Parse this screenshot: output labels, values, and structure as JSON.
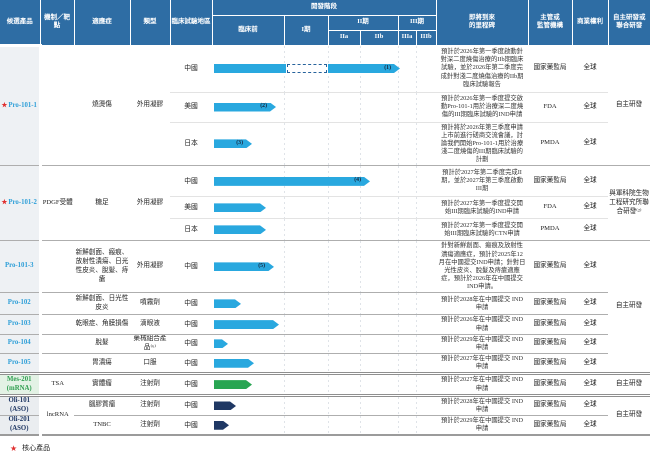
{
  "palette": {
    "header_blue": "#2E6DA4",
    "bar_blue": "#29A8DF",
    "bar_green": "#28A552",
    "bar_navy": "#1F3864",
    "product_blue": "#2E9FD8",
    "star_red": "#E03030",
    "mes_bg": "#E3F2E5",
    "oli_bg": "#EAEDF0",
    "prod_bg": "#EEF1F4"
  },
  "legend": {
    "star": "★",
    "core_product": "核心產品"
  },
  "header": {
    "candidate": "候選產品",
    "target": "機制／靶點",
    "indication": "適應症",
    "type": "類型",
    "region": "臨床試驗地區",
    "stage": "開發階段",
    "preclinical": "臨床前",
    "phase1": "I期",
    "phase2": "II期",
    "phase2a": "IIa",
    "phase2b": "IIb",
    "phase3": "III期",
    "phase3a": "IIIa",
    "phase3b": "IIIb",
    "milestone1": "即將到來",
    "milestone2": "的里程碑",
    "regulator1": "主管或",
    "regulator2": "監管機構",
    "commercial": "商業權利",
    "rnd1": "自主研發或",
    "rnd2": "聯合研發"
  },
  "rows": [
    {
      "product": "Pro-101-1",
      "star": true,
      "target": "",
      "indication": "燒燙傷",
      "type": "外用凝膠",
      "region": "中國",
      "milestone": "預計於2026年第一季度啟動針對深二度燒傷治療的IIb期臨床試驗，並於2026年第二季度完成針對淺二度燒傷治療的IIb期臨床試驗報告",
      "regulator": "國家藥監局",
      "commercial": "全球",
      "rights": "自主研發",
      "bar": {
        "color": "#29A8DF",
        "label": "(1)",
        "segments": [
          {
            "w": 72,
            "style": "solid"
          },
          {
            "w": 40,
            "style": "gap"
          },
          {
            "w": 72,
            "style": "arrow"
          }
        ]
      }
    },
    {
      "region": "美國",
      "milestone": "預計於2026年第一季度提交啟動Pro-101-1用於治療深二度燒傷的III期臨床試驗的IND申請",
      "regulator": "FDA",
      "commercial": "全球",
      "bar": {
        "color": "#29A8DF",
        "label": "(2)",
        "segments": [
          {
            "w": 62,
            "style": "arrow"
          }
        ]
      }
    },
    {
      "region": "日本",
      "milestone": "預計將於2026年第三季度申請上市前進行磋商交流會議，討論我們開始Pro-101-1用於治療淺二度燒傷的III期臨床試驗的計劃",
      "regulator": "PMDA",
      "commercial": "全球",
      "bar": {
        "color": "#29A8DF",
        "label": "(3)",
        "segments": [
          {
            "w": 38,
            "style": "arrow"
          }
        ]
      }
    },
    {
      "product": "Pro-101-2",
      "star": true,
      "target": "PDGF受體",
      "indication": "糖足",
      "type": "外用凝膠",
      "region": "中國",
      "milestone": "預計於2027年第二季度完成II期，並於2027年第三季度啟動III期",
      "regulator": "國家藥監局",
      "commercial": "全球",
      "rights": "與軍科院生物工程研究所聯合研發⁽²⁾",
      "bar": {
        "color": "#29A8DF",
        "label": "(4)",
        "segments": [
          {
            "w": 156,
            "style": "arrow"
          }
        ]
      }
    },
    {
      "region": "美國",
      "milestone": "預計於2027年第一季度提交開始III期臨床試驗的IND申請",
      "regulator": "FDA",
      "commercial": "全球",
      "bar": {
        "color": "#29A8DF",
        "segments": [
          {
            "w": 52,
            "style": "arrow"
          }
        ]
      }
    },
    {
      "region": "日本",
      "milestone": "預計於2027年第一季度提交開始III期臨床試驗的CTN申請",
      "regulator": "PMDA",
      "commercial": "全球",
      "bar": {
        "color": "#29A8DF",
        "segments": [
          {
            "w": 52,
            "style": "arrow"
          }
        ]
      }
    },
    {
      "product": "Pro-101-3",
      "target": "",
      "indication": "新鮮創面、瘢痕、放射性潰瘍、日光性皮炎、脫髮、痔瘡",
      "type": "外用凝膠",
      "region": "中國",
      "milestone": "針對新鮮創面、瘢痕及放射性潰瘍適應症，預計於2025年12月在中國提交IND申請；針對日光性皮炎、脫髮及痔瘡適應症，預計於2026年在中國提交IND申請。",
      "regulator": "國家藥監局",
      "commercial": "全球",
      "rights": "自主研發",
      "bar": {
        "color": "#29A8DF",
        "label": "(5)",
        "segments": [
          {
            "w": 60,
            "style": "arrow"
          }
        ]
      }
    },
    {
      "product": "Pro-102",
      "target": "",
      "indication": "新鮮創面、日光性皮炎",
      "type": "噴霧劑",
      "region": "中國",
      "milestone": "預計於2028年在中國提交 IND 申請",
      "regulator": "國家藥監局",
      "commercial": "全球",
      "bar": {
        "color": "#29A8DF",
        "segments": [
          {
            "w": 27,
            "style": "arrow"
          }
        ]
      }
    },
    {
      "product": "Pro-103",
      "target": "",
      "indication": "乾眼症、角膜損傷",
      "type": "滴眼液",
      "region": "中國",
      "milestone": "預計於2026年在中國提交 IND 申請",
      "regulator": "國家藥監局",
      "commercial": "全球",
      "bar": {
        "color": "#29A8DF",
        "segments": [
          {
            "w": 65,
            "style": "arrow"
          }
        ]
      }
    },
    {
      "product": "Pro-104",
      "target": "",
      "indication": "脫髮",
      "type": "藥械組合產品⁽⁶⁾",
      "region": "中國",
      "milestone": "預計於2029年在中國提交 IND 申請",
      "regulator": "國家藥監局",
      "commercial": "全球",
      "bar": {
        "color": "#29A8DF",
        "segments": [
          {
            "w": 14,
            "style": "arrow"
          }
        ]
      }
    },
    {
      "product": "Pro-105",
      "target": "",
      "indication": "胃潰瘍",
      "type": "口服",
      "region": "中國",
      "milestone": "預計於2027年在中國提交 IND 申請",
      "regulator": "國家藥監局",
      "commercial": "全球",
      "bar": {
        "color": "#29A8DF",
        "segments": [
          {
            "w": 40,
            "style": "arrow"
          }
        ]
      }
    },
    {
      "product": "Mes-201",
      "product_sub": "(mRNA)",
      "target": "TSA",
      "indication": "實體瘤",
      "type": "注射劑",
      "region": "中國",
      "milestone": "預計於2027年在中國提交 IND 申請",
      "regulator": "國家藥監局",
      "commercial": "全球",
      "rights": "自主研發",
      "bar": {
        "color": "#28A552",
        "segments": [
          {
            "w": 38,
            "style": "arrow"
          }
        ]
      }
    },
    {
      "product": "Oli-101",
      "product_sub": "(ASO)",
      "target": "lncRNA",
      "indication": "腦膠質瘤",
      "type": "注射劑",
      "region": "中國",
      "milestone": "預計於2028年在中國提交 IND 申請",
      "regulator": "國家藥監局",
      "commercial": "全球",
      "rights": "自主研發",
      "bar": {
        "color": "#1F3864",
        "segments": [
          {
            "w": 22,
            "style": "arrow"
          }
        ]
      }
    },
    {
      "product": "Oli-201",
      "product_sub": "(ASO)",
      "indication": "TNBC",
      "type": "注射劑",
      "region": "中國",
      "milestone": "預計於2029年在中國提交 IND 申請",
      "regulator": "國家藥監局",
      "commercial": "全球",
      "bar": {
        "color": "#1F3864",
        "segments": [
          {
            "w": 15,
            "style": "arrow"
          }
        ]
      }
    }
  ]
}
